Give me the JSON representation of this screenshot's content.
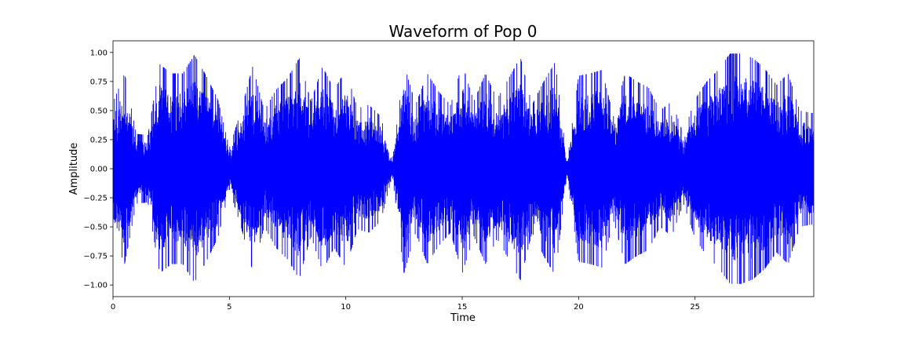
{
  "chart_data": {
    "type": "line",
    "title": "Waveform of Pop 0",
    "xlabel": "Time",
    "ylabel": "Amplitude",
    "xlim": [
      0,
      30.1
    ],
    "ylim": [
      -1.1,
      1.1
    ],
    "x_ticks": [
      0,
      5,
      10,
      15,
      20,
      25
    ],
    "x_tick_labels": [
      "0",
      "5",
      "10",
      "15",
      "20",
      "25"
    ],
    "y_ticks": [
      1.0,
      0.75,
      0.5,
      0.25,
      0.0,
      -0.25,
      -0.5,
      -0.75,
      -1.0
    ],
    "y_tick_labels": [
      "1.00",
      "0.75",
      "0.50",
      "0.25",
      "0.00",
      "−0.25",
      "−0.50",
      "−0.75",
      "−1.00"
    ],
    "grid": false,
    "series": [
      {
        "color": "#0000ff",
        "x": [
          0,
          0.5,
          1,
          1.5,
          2,
          2.5,
          3,
          3.5,
          4,
          4.5,
          5,
          5.5,
          6,
          6.5,
          7,
          7.5,
          8,
          8.5,
          9,
          9.5,
          10,
          10.5,
          11,
          11.5,
          12,
          12.5,
          13,
          13.5,
          14,
          14.5,
          15,
          15.5,
          16,
          16.5,
          17,
          17.5,
          18,
          18.5,
          19,
          19.5,
          20,
          20.5,
          21,
          21.5,
          22,
          22.5,
          23,
          23.5,
          24,
          24.5,
          25,
          25.5,
          26,
          26.5,
          27,
          27.5,
          28,
          28.5,
          29,
          29.5,
          30
        ],
        "amplitude": [
          0.57,
          0.82,
          0.3,
          0.29,
          0.9,
          0.82,
          0.82,
          0.98,
          0.8,
          0.6,
          0.18,
          0.5,
          0.88,
          0.5,
          0.68,
          0.78,
          0.95,
          0.58,
          0.88,
          0.68,
          0.85,
          0.52,
          0.55,
          0.45,
          0.06,
          0.9,
          0.55,
          0.82,
          0.66,
          0.55,
          0.9,
          0.58,
          0.82,
          0.6,
          0.78,
          0.96,
          0.55,
          0.75,
          0.92,
          0.05,
          0.8,
          0.82,
          0.85,
          0.45,
          0.82,
          0.75,
          0.7,
          0.5,
          0.58,
          0.3,
          0.6,
          0.75,
          0.85,
          0.99,
          0.99,
          0.95,
          0.86,
          0.72,
          0.82,
          0.5,
          0.48
        ]
      }
    ]
  }
}
